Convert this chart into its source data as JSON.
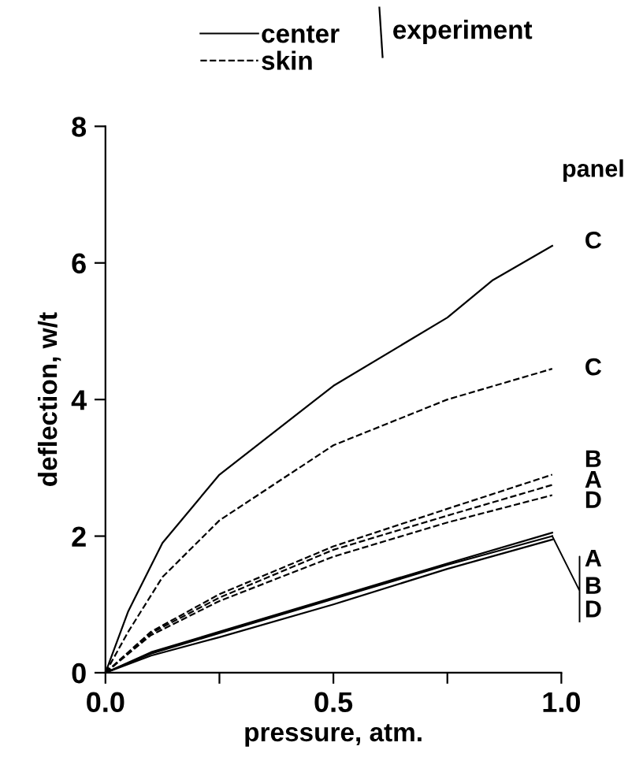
{
  "chart_data": {
    "type": "line",
    "xlabel": "pressure, atm.",
    "ylabel": "deflection, w/t",
    "xlim": [
      0,
      1.0
    ],
    "ylim": [
      0,
      8
    ],
    "xticks": [
      {
        "value": 0,
        "label": "0.0"
      },
      {
        "value": 0.25,
        "label": null
      },
      0.5,
      {
        "value": 0.75,
        "label": null
      },
      {
        "value": 1.0,
        "label": "1.0"
      }
    ],
    "yticks": [
      0,
      2,
      4,
      6,
      8
    ],
    "legend": "top",
    "legend_title": "experiment",
    "grid": false,
    "series": [
      {
        "name": "center",
        "color": "#000000",
        "line_style": "solid",
        "x": [
          0,
          0.05,
          0.125,
          0.25,
          0.5,
          0.75,
          0.85,
          0.98
        ],
        "values": [
          0,
          0.9,
          1.9,
          2.9,
          4.2,
          5.2,
          5.75,
          6.25
        ]
      },
      {
        "color": "#000000",
        "line_style": "solid",
        "x": [
          0,
          0.1,
          0.25,
          0.5,
          0.75,
          0.98
        ],
        "values": [
          0,
          0.3,
          0.6,
          1.1,
          1.6,
          2.05
        ]
      },
      {
        "color": "#000000",
        "line_style": "solid",
        "x": [
          0,
          0.1,
          0.25,
          0.5,
          0.75,
          0.98
        ],
        "values": [
          0,
          0.28,
          0.58,
          1.08,
          1.58,
          2.0
        ]
      },
      {
        "color": "#000000",
        "line_style": "solid",
        "x": [
          0,
          0.1,
          0.25,
          0.5,
          0.75,
          0.98
        ],
        "values": [
          0,
          0.25,
          0.52,
          1.0,
          1.52,
          1.95
        ]
      },
      {
        "name": "skin",
        "color": "#000000",
        "line_style": "dashed",
        "x": [
          0,
          0.05,
          0.125,
          0.25,
          0.5,
          0.75,
          0.98
        ],
        "values": [
          0,
          0.6,
          1.4,
          2.23,
          3.33,
          4.0,
          4.45
        ]
      },
      {
        "color": "#000000",
        "line_style": "dashed",
        "x": [
          0,
          0.1,
          0.25,
          0.5,
          0.75,
          0.98
        ],
        "values": [
          0,
          0.6,
          1.15,
          1.85,
          2.4,
          2.9
        ]
      },
      {
        "color": "#000000",
        "line_style": "dashed",
        "x": [
          0,
          0.1,
          0.25,
          0.5,
          0.75,
          0.98
        ],
        "values": [
          0,
          0.58,
          1.1,
          1.8,
          2.3,
          2.75
        ]
      },
      {
        "color": "#000000",
        "line_style": "dashed",
        "x": [
          0,
          0.1,
          0.25,
          0.5,
          0.75,
          0.98
        ],
        "values": [
          0,
          0.55,
          1.05,
          1.7,
          2.2,
          2.6
        ]
      }
    ],
    "annotations": [
      "panel",
      "C",
      "C",
      "B",
      "A",
      "D",
      "A",
      {
        "text": "B",
        "x": 0.98,
        "y": 2.0
      },
      "D"
    ]
  }
}
